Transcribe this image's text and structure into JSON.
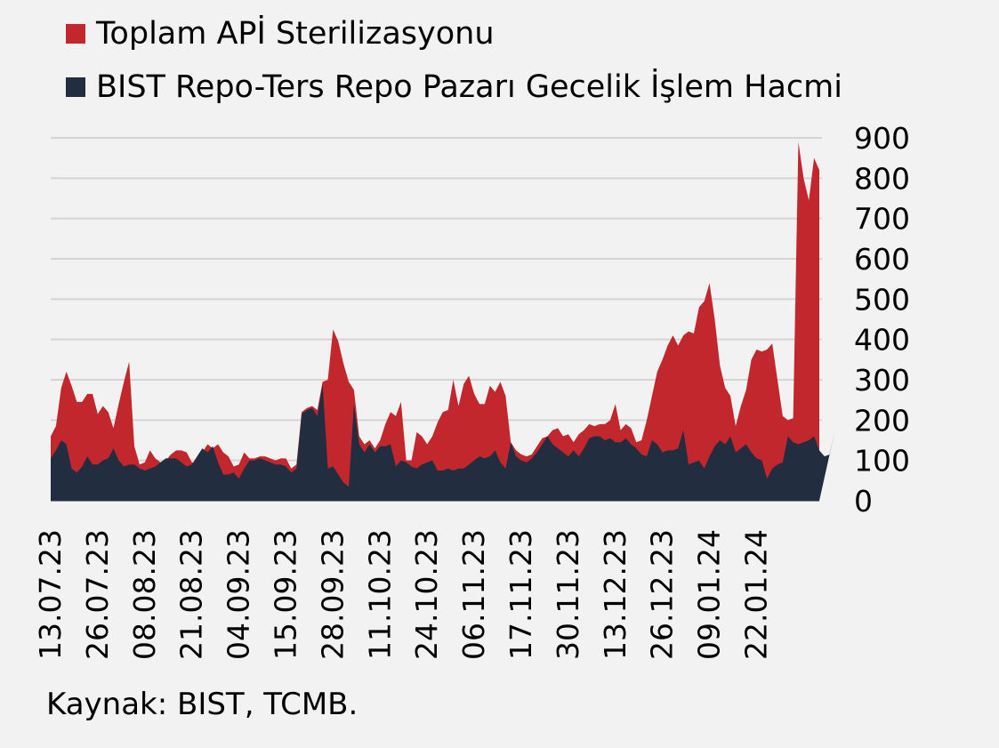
{
  "legend": [
    {
      "label": "Toplam APİ Sterilizasyonu",
      "color": "#c1272d"
    },
    {
      "label": "BIST Repo-Ters Repo Pazarı Gecelik İşlem Hacmi",
      "color": "#222d40"
    }
  ],
  "source": "Kaynak: BIST, TCMB.",
  "chart_data": {
    "type": "area",
    "stacking": "overlay",
    "grid": true,
    "y_axis_side": "right",
    "ylim": [
      0,
      900
    ],
    "yticks": [
      0,
      100,
      200,
      300,
      400,
      500,
      600,
      700,
      800,
      900
    ],
    "x_tick_labels": [
      "13.07.23",
      "26.07.23",
      "08.08.23",
      "21.08.23",
      "04.09.23",
      "15.09.23",
      "28.09.23",
      "11.10.23",
      "24.10.23",
      "06.11.23",
      "17.11.23",
      "30.11.23",
      "13.12.23",
      "26.12.23",
      "09.01.24",
      "22.01.24"
    ],
    "x_tick_indices": [
      0,
      9,
      18,
      27,
      36,
      45,
      54,
      63,
      72,
      81,
      90,
      99,
      108,
      117,
      126,
      135
    ],
    "series": [
      {
        "name": "Toplam APİ Sterilizasyonu",
        "color": "#c1272d",
        "values": [
          160,
          185,
          280,
          320,
          285,
          245,
          245,
          265,
          265,
          215,
          235,
          220,
          180,
          240,
          295,
          345,
          135,
          90,
          95,
          125,
          105,
          95,
          100,
          115,
          125,
          125,
          120,
          95,
          95,
          120,
          140,
          130,
          140,
          120,
          110,
          85,
          90,
          120,
          105,
          105,
          110,
          110,
          105,
          100,
          105,
          105,
          80,
          90,
          220,
          230,
          235,
          225,
          295,
          300,
          425,
          395,
          340,
          295,
          275,
          160,
          140,
          150,
          130,
          150,
          190,
          220,
          210,
          245,
          100,
          100,
          170,
          160,
          140,
          160,
          195,
          220,
          225,
          300,
          235,
          290,
          310,
          265,
          240,
          240,
          285,
          270,
          295,
          260,
          145,
          125,
          115,
          110,
          115,
          135,
          155,
          160,
          175,
          180,
          160,
          165,
          145,
          165,
          175,
          190,
          185,
          190,
          190,
          200,
          240,
          175,
          190,
          180,
          145,
          150,
          200,
          260,
          320,
          350,
          385,
          410,
          385,
          410,
          420,
          415,
          480,
          495,
          540,
          450,
          335,
          280,
          260,
          185,
          235,
          275,
          350,
          375,
          370,
          375,
          390,
          300,
          210,
          200,
          205,
          890,
          800,
          745,
          850,
          820
        ]
      },
      {
        "name": "BIST Repo-Ters Repo Pazarı Gecelik İşlem Hacmi",
        "color": "#222d40",
        "values": [
          105,
          125,
          150,
          140,
          80,
          70,
          85,
          110,
          90,
          90,
          100,
          105,
          130,
          100,
          85,
          90,
          90,
          80,
          75,
          80,
          85,
          95,
          105,
          105,
          105,
          95,
          85,
          90,
          110,
          130,
          120,
          135,
          95,
          65,
          65,
          70,
          55,
          80,
          100,
          100,
          105,
          100,
          95,
          90,
          90,
          85,
          70,
          80,
          215,
          225,
          230,
          210,
          290,
          80,
          85,
          65,
          45,
          35,
          240,
          140,
          120,
          140,
          120,
          135,
          135,
          140,
          85,
          100,
          95,
          85,
          80,
          90,
          95,
          100,
          75,
          75,
          80,
          75,
          80,
          80,
          90,
          100,
          110,
          105,
          110,
          125,
          95,
          80,
          145,
          110,
          100,
          95,
          105,
          120,
          140,
          160,
          140,
          130,
          120,
          110,
          125,
          110,
          130,
          155,
          160,
          160,
          150,
          155,
          145,
          145,
          155,
          140,
          130,
          115,
          110,
          150,
          140,
          120,
          125,
          125,
          130,
          175,
          90,
          95,
          100,
          80,
          110,
          135,
          150,
          140,
          160,
          120,
          130,
          140,
          120,
          105,
          100,
          55,
          80,
          90,
          95,
          160,
          145,
          140,
          145,
          150,
          160,
          125,
          110,
          115,
          175
        ]
      }
    ]
  }
}
